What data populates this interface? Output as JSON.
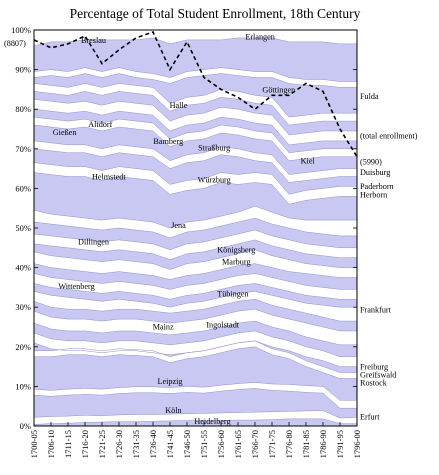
{
  "chart_data": {
    "type": "area",
    "title": "Percentage of Total Student Enrollment, 18th Century",
    "x": [
      "1700-05",
      "1706-10",
      "1711-15",
      "1716-20",
      "1721-25",
      "1726-30",
      "1731-35",
      "1736-40",
      "1741-45",
      "1746-50",
      "1751-55",
      "1756-60",
      "1761-65",
      "1766-70",
      "1771-75",
      "1776-80",
      "1781-85",
      "1786-90",
      "1791-95",
      "1796-00"
    ],
    "y_ticks": [
      "0%",
      "10%",
      "20%",
      "30%",
      "40%",
      "50%",
      "60%",
      "70%",
      "80%",
      "90%",
      "100%"
    ],
    "ylim": [
      0,
      100
    ],
    "band_colors": [
      "#c8c8f2",
      "#ffffff"
    ],
    "boundaries": [
      [
        0.4,
        0.6,
        0.7,
        0.9,
        1.0,
        1.1,
        1.1,
        1.2,
        1.3,
        1.4,
        1.4,
        1.4,
        1.5,
        1.5,
        1.6,
        1.8,
        1.8,
        1.8,
        0.6,
        0.6
      ],
      [
        2.2,
        2.4,
        2.5,
        2.7,
        2.6,
        2.8,
        2.9,
        2.9,
        3.0,
        3.1,
        3.2,
        3.3,
        3.4,
        3.5,
        3.6,
        3.7,
        3.8,
        3.9,
        2.0,
        2.2
      ],
      [
        7.8,
        7.5,
        7.8,
        8.0,
        7.8,
        8.2,
        8.4,
        8.4,
        8.2,
        8.5,
        8.3,
        8.8,
        9.2,
        9.5,
        9.0,
        8.8,
        8.5,
        8.3,
        4.5,
        4.5
      ],
      [
        9.3,
        9.0,
        9.3,
        9.5,
        9.3,
        9.7,
        9.9,
        9.9,
        9.7,
        10.0,
        9.8,
        10.3,
        10.7,
        11.0,
        10.6,
        10.5,
        10.2,
        10.0,
        6.5,
        6.5
      ],
      [
        17.5,
        17.5,
        18.0,
        18.0,
        17.5,
        18.0,
        17.8,
        17.5,
        16.0,
        17.0,
        17.5,
        18.5,
        19.5,
        20.0,
        18.0,
        17.0,
        15.0,
        13.5,
        12.0,
        12.0
      ],
      [
        19.0,
        19.0,
        19.5,
        19.5,
        19.0,
        19.5,
        19.3,
        19.0,
        17.5,
        18.5,
        19.0,
        20.0,
        21.0,
        21.5,
        19.5,
        18.5,
        16.5,
        15.0,
        13.5,
        13.5
      ],
      [
        21.0,
        19.5,
        19.0,
        19.0,
        18.5,
        19.0,
        19.0,
        18.5,
        18.0,
        18.5,
        19.0,
        20.0,
        21.0,
        21.5,
        20.0,
        19.0,
        17.5,
        16.5,
        15.0,
        15.0
      ],
      [
        23.5,
        22.0,
        21.5,
        21.5,
        21.0,
        21.5,
        21.5,
        21.0,
        20.5,
        21.0,
        21.5,
        22.5,
        23.5,
        24.0,
        22.5,
        21.5,
        20.0,
        19.0,
        17.5,
        17.5
      ],
      [
        26.0,
        24.5,
        24.0,
        24.0,
        23.5,
        24.0,
        24.0,
        23.5,
        23.0,
        23.5,
        24.0,
        25.0,
        26.0,
        26.5,
        25.0,
        24.0,
        22.5,
        21.5,
        20.5,
        20.5
      ],
      [
        29.0,
        27.5,
        27.0,
        27.0,
        26.5,
        27.0,
        27.0,
        26.5,
        26.0,
        26.5,
        27.0,
        28.0,
        29.0,
        29.5,
        28.0,
        27.0,
        26.0,
        25.0,
        24.0,
        24.0
      ],
      [
        31.5,
        30.0,
        29.5,
        29.5,
        29.0,
        29.5,
        29.5,
        29.0,
        28.5,
        29.0,
        29.5,
        30.5,
        31.5,
        32.0,
        30.5,
        29.5,
        28.5,
        27.5,
        26.5,
        26.5
      ],
      [
        34.0,
        33.0,
        32.5,
        32.0,
        31.5,
        32.0,
        31.5,
        31.0,
        30.0,
        31.0,
        31.5,
        32.5,
        33.5,
        34.0,
        33.0,
        32.0,
        31.0,
        30.5,
        30.0,
        30.0
      ],
      [
        36.0,
        35.0,
        34.5,
        34.0,
        33.5,
        34.0,
        33.5,
        33.0,
        32.0,
        33.0,
        33.5,
        34.5,
        35.5,
        36.0,
        35.0,
        34.0,
        33.0,
        32.5,
        32.0,
        32.0
      ],
      [
        38.5,
        37.5,
        37.0,
        36.5,
        36.0,
        36.5,
        36.0,
        35.5,
        34.5,
        35.5,
        36.0,
        37.0,
        38.0,
        38.5,
        37.5,
        36.5,
        35.5,
        35.0,
        34.5,
        34.5
      ],
      [
        41.0,
        40.0,
        39.5,
        39.0,
        38.5,
        39.0,
        38.5,
        38.0,
        37.0,
        38.0,
        38.5,
        39.5,
        40.5,
        41.0,
        40.0,
        39.0,
        38.5,
        38.0,
        37.5,
        37.5
      ],
      [
        44.0,
        43.0,
        42.5,
        42.0,
        41.5,
        42.0,
        41.5,
        41.0,
        39.5,
        41.0,
        41.5,
        42.5,
        43.5,
        44.5,
        43.0,
        42.0,
        41.0,
        40.5,
        40.0,
        40.0
      ],
      [
        46.0,
        45.5,
        45.0,
        44.5,
        44.0,
        44.5,
        44.0,
        43.5,
        42.0,
        43.5,
        44.0,
        45.0,
        46.0,
        47.0,
        45.5,
        44.5,
        43.5,
        43.0,
        42.5,
        42.5
      ],
      [
        48.5,
        48.0,
        47.5,
        47.0,
        46.5,
        47.0,
        46.5,
        46.0,
        44.5,
        46.0,
        46.5,
        47.5,
        48.5,
        49.5,
        48.0,
        47.0,
        46.0,
        45.5,
        45.0,
        45.0
      ],
      [
        51.5,
        51.0,
        50.5,
        50.0,
        49.5,
        50.0,
        49.5,
        49.0,
        47.5,
        49.0,
        49.5,
        50.5,
        51.5,
        52.5,
        51.0,
        50.0,
        49.0,
        48.5,
        48.0,
        48.0
      ],
      [
        54.5,
        53.5,
        53.0,
        52.5,
        52.0,
        52.5,
        52.0,
        51.5,
        50.0,
        51.5,
        52.0,
        53.0,
        54.0,
        55.5,
        54.0,
        52.5,
        52.0,
        52.0,
        52.0,
        52.0
      ],
      [
        64.0,
        63.5,
        63.0,
        63.0,
        62.0,
        63.0,
        62.5,
        62.0,
        58.5,
        59.5,
        60.0,
        61.5,
        61.0,
        61.5,
        61.0,
        56.0,
        57.0,
        57.5,
        58.0,
        58.0
      ],
      [
        66.5,
        66.0,
        65.5,
        65.5,
        64.5,
        65.5,
        65.0,
        64.5,
        61.0,
        62.0,
        62.5,
        64.0,
        63.5,
        64.0,
        63.5,
        58.5,
        59.5,
        60.0,
        60.5,
        60.5
      ],
      [
        70.0,
        69.5,
        69.0,
        69.0,
        68.0,
        69.0,
        68.5,
        68.0,
        65.0,
        66.5,
        67.0,
        68.5,
        68.0,
        67.0,
        66.5,
        61.5,
        62.0,
        62.5,
        63.0,
        63.0
      ],
      [
        72.0,
        71.5,
        71.0,
        71.0,
        70.0,
        71.0,
        70.5,
        70.0,
        67.0,
        68.5,
        69.0,
        70.5,
        70.0,
        69.0,
        68.5,
        63.5,
        64.0,
        64.5,
        65.0,
        65.0
      ],
      [
        76.0,
        75.5,
        75.0,
        75.5,
        74.5,
        75.5,
        75.0,
        74.5,
        70.5,
        72.0,
        72.5,
        74.0,
        73.5,
        72.5,
        72.0,
        67.0,
        67.5,
        68.0,
        68.0,
        68.0
      ],
      [
        78.0,
        77.5,
        77.0,
        77.5,
        76.5,
        77.5,
        77.0,
        76.5,
        72.5,
        74.0,
        74.5,
        76.0,
        75.5,
        74.5,
        74.0,
        69.0,
        69.5,
        70.0,
        70.0,
        70.0
      ],
      [
        80.0,
        79.5,
        79.0,
        79.5,
        78.5,
        79.5,
        79.0,
        78.5,
        74.5,
        76.0,
        76.5,
        78.0,
        77.5,
        76.5,
        76.0,
        71.0,
        71.5,
        72.0,
        72.0,
        72.0
      ],
      [
        82.5,
        82.0,
        81.5,
        82.0,
        81.0,
        82.0,
        81.5,
        81.0,
        77.0,
        78.5,
        79.0,
        80.5,
        80.0,
        79.0,
        78.5,
        73.5,
        74.0,
        74.5,
        74.5,
        74.5
      ],
      [
        84.5,
        84.0,
        83.5,
        84.5,
        83.5,
        84.5,
        84.0,
        83.5,
        79.5,
        81.0,
        81.5,
        83.0,
        82.5,
        81.5,
        81.0,
        76.0,
        76.5,
        77.0,
        77.0,
        77.0
      ],
      [
        86.5,
        86.0,
        85.5,
        86.5,
        85.5,
        86.5,
        86.0,
        85.5,
        81.5,
        83.0,
        83.5,
        85.0,
        84.5,
        83.5,
        83.0,
        78.0,
        78.5,
        79.0,
        79.0,
        79.0
      ],
      [
        88.0,
        88.5,
        88.0,
        89.0,
        88.0,
        89.0,
        88.0,
        87.5,
        86.5,
        88.0,
        88.5,
        89.0,
        88.5,
        88.0,
        88.0,
        86.5,
        86.0,
        86.0,
        85.5,
        85.5
      ],
      [
        89.5,
        90.0,
        89.5,
        90.5,
        89.5,
        90.5,
        89.5,
        89.0,
        88.0,
        89.5,
        90.0,
        90.5,
        90.0,
        89.5,
        89.5,
        88.0,
        87.5,
        87.5,
        87.0,
        87.0
      ],
      [
        96.0,
        97.0,
        97.0,
        97.5,
        97.5,
        97.5,
        97.5,
        98.0,
        96.5,
        97.5,
        97.5,
        97.5,
        98.0,
        98.0,
        98.0,
        97.0,
        97.0,
        97.0,
        96.5,
        96.5
      ],
      [
        100,
        100,
        100,
        100,
        100,
        100,
        100,
        100,
        100,
        100,
        100,
        100,
        100,
        100,
        100,
        100,
        100,
        100,
        100,
        100
      ]
    ],
    "total_enrollment": {
      "label": "(total enrollment)",
      "start_label": "(8807)",
      "end_label": "(5990)",
      "values": [
        97.5,
        95.5,
        96.5,
        98.5,
        91.5,
        95.0,
        98.0,
        99.5,
        90.0,
        97.0,
        88.0,
        85.0,
        83.0,
        80.0,
        83.5,
        83.5,
        86.5,
        84.5,
        75.0,
        68.0
      ]
    },
    "inside_labels": [
      {
        "text": "Breslau",
        "x": 3.5,
        "y": 97.5
      },
      {
        "text": "Erlangen",
        "x": 13.3,
        "y": 98.3
      },
      {
        "text": "Göttingen",
        "x": 14.4,
        "y": 85.0
      },
      {
        "text": "Halle",
        "x": 8.5,
        "y": 81.0
      },
      {
        "text": "Altdorf",
        "x": 3.9,
        "y": 76.2
      },
      {
        "text": "Gießen",
        "x": 1.8,
        "y": 74.3
      },
      {
        "text": "Bamberg",
        "x": 7.9,
        "y": 72.0
      },
      {
        "text": "Straßburg",
        "x": 10.6,
        "y": 70.3
      },
      {
        "text": "Kiel",
        "x": 16.1,
        "y": 67.0
      },
      {
        "text": "Helmstedt",
        "x": 4.4,
        "y": 63.0
      },
      {
        "text": "Würzburg",
        "x": 10.6,
        "y": 62.3
      },
      {
        "text": "Jena",
        "x": 8.5,
        "y": 50.8
      },
      {
        "text": "Dillingen",
        "x": 3.5,
        "y": 46.6
      },
      {
        "text": "Königsberg",
        "x": 11.9,
        "y": 44.6
      },
      {
        "text": "Marburg",
        "x": 11.9,
        "y": 41.6
      },
      {
        "text": "Wittenberg",
        "x": 2.5,
        "y": 35.3
      },
      {
        "text": "Tübingen",
        "x": 11.7,
        "y": 33.4
      },
      {
        "text": "Mainz",
        "x": 7.6,
        "y": 25.1
      },
      {
        "text": "Ingolstadt",
        "x": 11.1,
        "y": 25.6
      },
      {
        "text": "Leipzig",
        "x": 8.0,
        "y": 11.4
      },
      {
        "text": "Köln",
        "x": 8.2,
        "y": 4.0
      },
      {
        "text": "Heidelberg",
        "x": 10.5,
        "y": 1.2
      }
    ],
    "side_labels": [
      {
        "text": "Fulda",
        "y": 83.3
      },
      {
        "text": "(total enrollment)",
        "y": 73.3
      },
      {
        "text": "(5990)",
        "y": 66.8
      },
      {
        "text": "Duisburg",
        "y": 64.1
      },
      {
        "text": "Paderborn",
        "y": 60.6
      },
      {
        "text": "Herborn",
        "y": 58.5
      },
      {
        "text": "Frankfurt",
        "y": 29.4
      },
      {
        "text": "Freiburg",
        "y": 15.0
      },
      {
        "text": "Greifswald",
        "y": 13.0
      },
      {
        "text": "Rostock",
        "y": 11.0
      },
      {
        "text": "Erfurt",
        "y": 2.4
      }
    ]
  }
}
